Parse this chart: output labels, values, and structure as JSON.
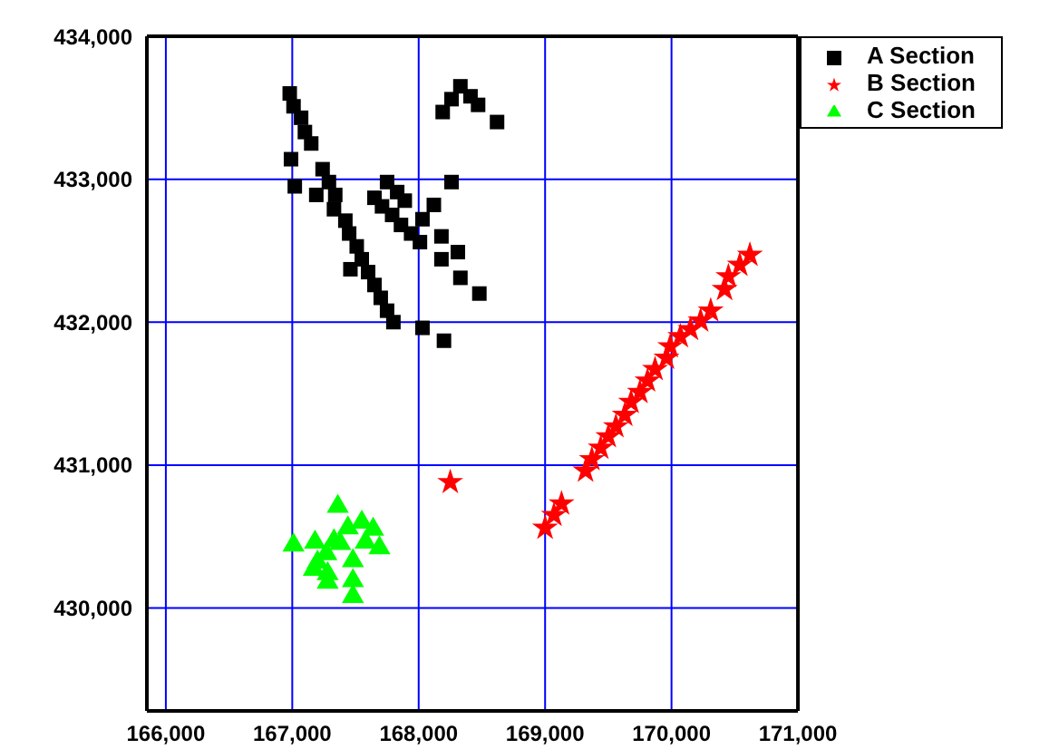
{
  "chart_data": {
    "type": "scatter",
    "xlim": [
      165850,
      171000
    ],
    "ylim": [
      429280,
      434000
    ],
    "xticks": [
      {
        "value": 166000,
        "label": "166,000"
      },
      {
        "value": 167000,
        "label": "167,000"
      },
      {
        "value": 168000,
        "label": "168,000"
      },
      {
        "value": 169000,
        "label": "169,000"
      },
      {
        "value": 170000,
        "label": "170,000"
      },
      {
        "value": 171000,
        "label": "171,000"
      }
    ],
    "yticks": [
      {
        "value": 430000,
        "label": "430,000"
      },
      {
        "value": 431000,
        "label": "431,000"
      },
      {
        "value": 432000,
        "label": "432,000"
      },
      {
        "value": 433000,
        "label": "433,000"
      },
      {
        "value": 434000,
        "label": "434,000"
      }
    ],
    "grid": true,
    "legend": "top right",
    "series": [
      {
        "name": "A Section",
        "color": "#000000",
        "marker": "square",
        "x": [
          166980,
          167010,
          167070,
          167100,
          167150,
          166990,
          167240,
          167290,
          167340,
          167330,
          167020,
          167190,
          167420,
          167450,
          167510,
          167550,
          167460,
          167600,
          167650,
          167700,
          167750,
          167800,
          167750,
          167830,
          167890,
          167650,
          167710,
          167790,
          167860,
          167940,
          168010,
          168030,
          168120,
          168260,
          168180,
          168310,
          168180,
          168330,
          168480,
          168030,
          168200,
          168190,
          168260,
          168330,
          168410,
          168470,
          168620
        ],
        "values": [
          433600,
          433510,
          433430,
          433330,
          433250,
          433140,
          433070,
          432980,
          432890,
          432790,
          432950,
          432890,
          432710,
          432620,
          432530,
          432440,
          432370,
          432350,
          432260,
          432170,
          432080,
          432000,
          432980,
          432910,
          432850,
          432870,
          432810,
          432750,
          432680,
          432620,
          432560,
          432720,
          432820,
          432980,
          432600,
          432490,
          432440,
          432310,
          432200,
          431960,
          431870,
          433470,
          433560,
          433650,
          433580,
          433520,
          433400
        ]
      },
      {
        "name": "B Section",
        "color": "#ff0000",
        "marker": "star",
        "x": [
          169000,
          169070,
          169130,
          169320,
          169370,
          169440,
          169500,
          169560,
          169630,
          169680,
          169750,
          169810,
          169870,
          169960,
          169990,
          170070,
          170150,
          170230,
          170310,
          170420,
          170450,
          170540,
          170620,
          168250
        ],
        "values": [
          430560,
          430650,
          430730,
          430960,
          431040,
          431120,
          431200,
          431270,
          431350,
          431440,
          431510,
          431590,
          431670,
          431750,
          431830,
          431900,
          431950,
          432010,
          432080,
          432230,
          432320,
          432400,
          432470,
          430880
        ]
      },
      {
        "name": "C Section",
        "color": "#00ff00",
        "marker": "triangle",
        "x": [
          167010,
          167360,
          167180,
          167440,
          167550,
          167640,
          167330,
          167380,
          167580,
          167690,
          167270,
          167200,
          167170,
          167280,
          167280,
          167480,
          167480,
          167480
        ],
        "values": [
          430440,
          430710,
          430460,
          430560,
          430600,
          430550,
          430470,
          430450,
          430460,
          430420,
          430380,
          430320,
          430270,
          430240,
          430180,
          430330,
          430190,
          430080
        ]
      }
    ]
  }
}
